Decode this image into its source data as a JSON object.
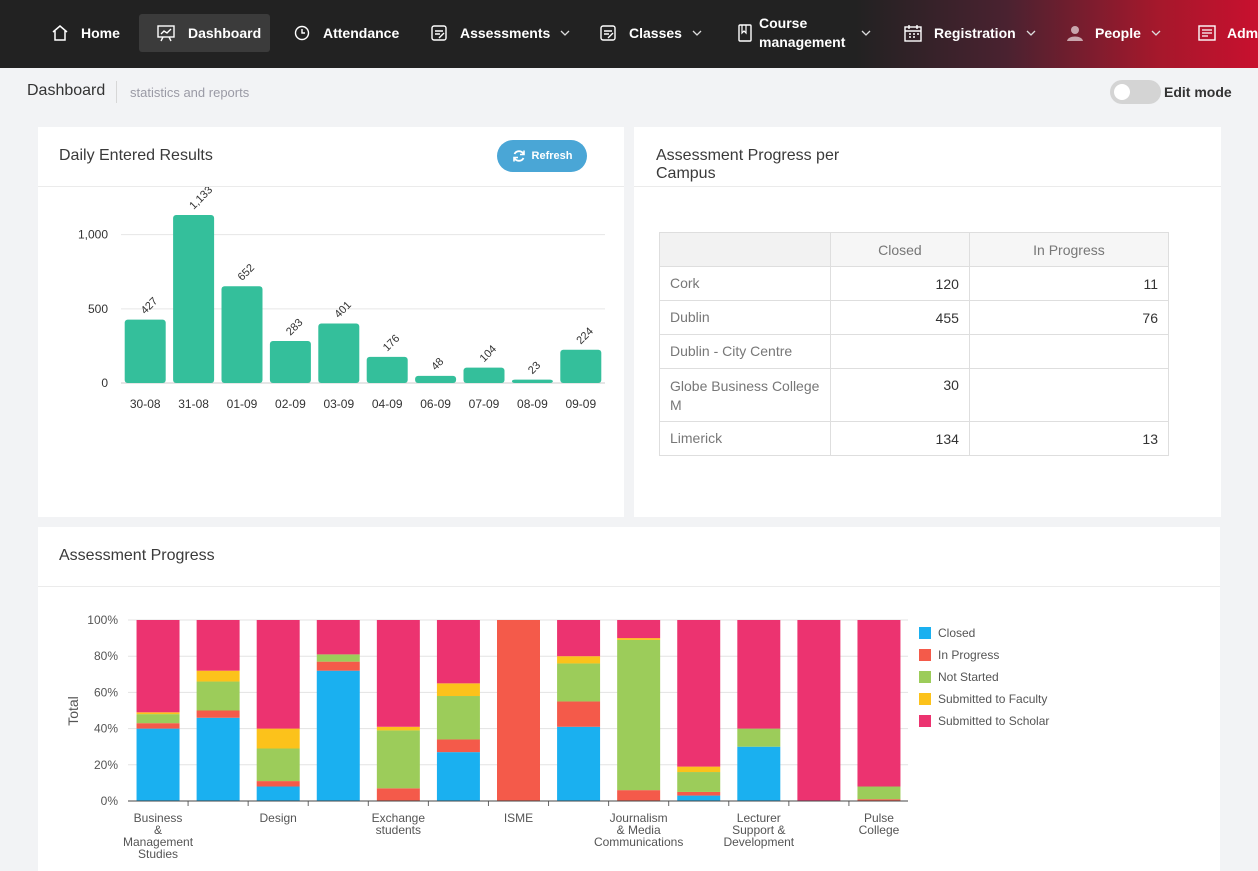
{
  "nav": {
    "items": [
      {
        "label": "Home",
        "icon": "home-icon"
      },
      {
        "label": "Dashboard",
        "icon": "presentation-icon",
        "active": true
      },
      {
        "label": "Attendance",
        "icon": "clock-icon"
      },
      {
        "label": "Assessments",
        "icon": "clipboard-icon"
      },
      {
        "label": "Classes",
        "icon": "clipboard-icon"
      },
      {
        "label_line1": "Course",
        "label_line2": "management",
        "icon": "book-icon"
      },
      {
        "label": "Registration",
        "icon": "calendar-icon"
      },
      {
        "label": "People",
        "icon": "user-icon"
      },
      {
        "label": "Admi",
        "icon": "admin-icon"
      }
    ]
  },
  "subheader": {
    "title": "Dashboard",
    "subtitle": "statistics and reports",
    "edit_mode_label": "Edit mode"
  },
  "daily_panel": {
    "title": "Daily Entered Results",
    "refresh_label": "Refresh"
  },
  "campus_panel": {
    "title_line1": "Assessment Progress per",
    "title_line2": "Campus",
    "columns": [
      "Closed",
      "In Progress"
    ],
    "rows": [
      {
        "name": "Cork",
        "closed": "120",
        "in_progress": "11"
      },
      {
        "name": "Dublin",
        "closed": "455",
        "in_progress": "76"
      },
      {
        "name": "Dublin - City Centre",
        "closed": "",
        "in_progress": ""
      },
      {
        "name": "Globe Business College M",
        "closed": "30",
        "in_progress": ""
      },
      {
        "name": "Limerick",
        "closed": "134",
        "in_progress": "13"
      }
    ]
  },
  "progress_panel": {
    "title": "Assessment Progress"
  },
  "colors": {
    "bar_green": "#34bf9b",
    "closed": "#1ab0f0",
    "in_progress": "#f45a4a",
    "not_started": "#9ccc5a",
    "submitted_faculty": "#fcc21b",
    "submitted_scholar": "#ec3370"
  },
  "chart_data": [
    {
      "type": "bar",
      "title": "Daily Entered Results",
      "categories": [
        "30-08",
        "31-08",
        "01-09",
        "02-09",
        "03-09",
        "04-09",
        "06-09",
        "07-09",
        "08-09",
        "09-09"
      ],
      "values": [
        427,
        1133,
        652,
        283,
        401,
        176,
        48,
        104,
        23,
        224
      ],
      "value_labels": [
        "427",
        "1,133",
        "652",
        "283",
        "401",
        "176",
        "48",
        "104",
        "23",
        "224"
      ],
      "y_ticks": [
        "0",
        "500",
        "1,000"
      ],
      "ylim": [
        0,
        1200
      ],
      "xlabel": "",
      "ylabel": ""
    },
    {
      "type": "bar",
      "stacked": true,
      "title": "Assessment Progress",
      "ylabel": "Total",
      "xlabel": "",
      "y_ticks": [
        "0%",
        "20%",
        "40%",
        "60%",
        "80%",
        "100%"
      ],
      "ylim": [
        0,
        100
      ],
      "category_labels": [
        [
          "Business",
          "&",
          "Management",
          "Studies"
        ],
        [],
        [
          "Design"
        ],
        [],
        [
          "Exchange",
          "students"
        ],
        [],
        [
          "ISME"
        ],
        [],
        [
          "Journalism",
          "& Media",
          "Communications"
        ],
        [],
        [
          "Lecturer",
          "Support &",
          "Development"
        ],
        [],
        [
          "Pulse",
          "College"
        ]
      ],
      "series": [
        {
          "name": "Closed",
          "color": "#1ab0f0",
          "values": [
            40,
            46,
            8,
            72,
            0,
            27,
            0,
            41,
            0,
            3,
            30,
            0,
            0
          ]
        },
        {
          "name": "In Progress",
          "color": "#f45a4a",
          "values": [
            3,
            4,
            3,
            5,
            7,
            7,
            100,
            14,
            6,
            2,
            0,
            0,
            1
          ]
        },
        {
          "name": "Not Started",
          "color": "#9ccc5a",
          "values": [
            5,
            16,
            18,
            4,
            32,
            24,
            0,
            21,
            83,
            11,
            10,
            0,
            7
          ]
        },
        {
          "name": "Submitted to Faculty",
          "color": "#fcc21b",
          "values": [
            1,
            6,
            11,
            0,
            2,
            7,
            0,
            4,
            1,
            3,
            0,
            0,
            0
          ]
        },
        {
          "name": "Submitted to Scholar",
          "color": "#ec3370",
          "values": [
            51,
            28,
            60,
            19,
            59,
            35,
            0,
            20,
            10,
            81,
            60,
            100,
            92
          ]
        }
      ]
    }
  ]
}
